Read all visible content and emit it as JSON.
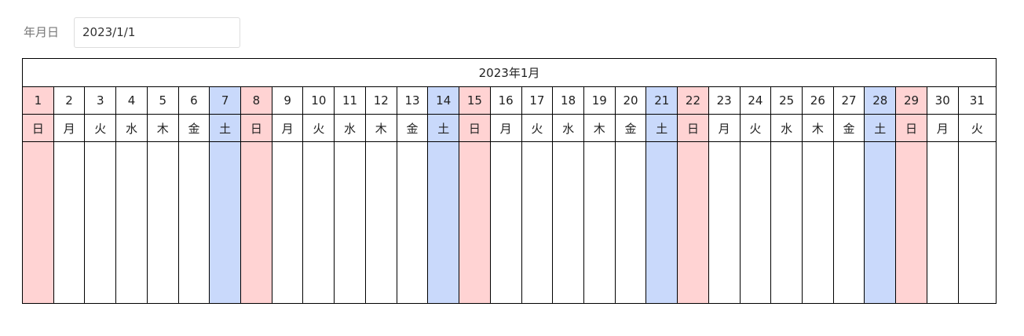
{
  "form": {
    "label": "年月日",
    "value": "2023/1/1"
  },
  "calendar": {
    "title": "2023年1月",
    "days": [
      1,
      2,
      3,
      4,
      5,
      6,
      7,
      8,
      9,
      10,
      11,
      12,
      13,
      14,
      15,
      16,
      17,
      18,
      19,
      20,
      21,
      22,
      23,
      24,
      25,
      26,
      27,
      28,
      29,
      30,
      31
    ],
    "weekdays": [
      "日",
      "月",
      "火",
      "水",
      "木",
      "金",
      "土",
      "日",
      "月",
      "火",
      "水",
      "木",
      "金",
      "土",
      "日",
      "月",
      "火",
      "水",
      "木",
      "金",
      "土",
      "日",
      "月",
      "火",
      "水",
      "木",
      "金",
      "土",
      "日",
      "月",
      "火"
    ],
    "column_colors": [
      "#ffd3d3",
      null,
      null,
      null,
      null,
      null,
      "#c9d9fb",
      "#ffd3d3",
      null,
      null,
      null,
      null,
      null,
      "#c9d9fb",
      "#ffd3d3",
      null,
      null,
      null,
      null,
      null,
      "#c9d9fb",
      "#ffd3d3",
      null,
      null,
      null,
      null,
      null,
      "#c9d9fb",
      "#ffd3d3",
      null,
      null
    ]
  }
}
